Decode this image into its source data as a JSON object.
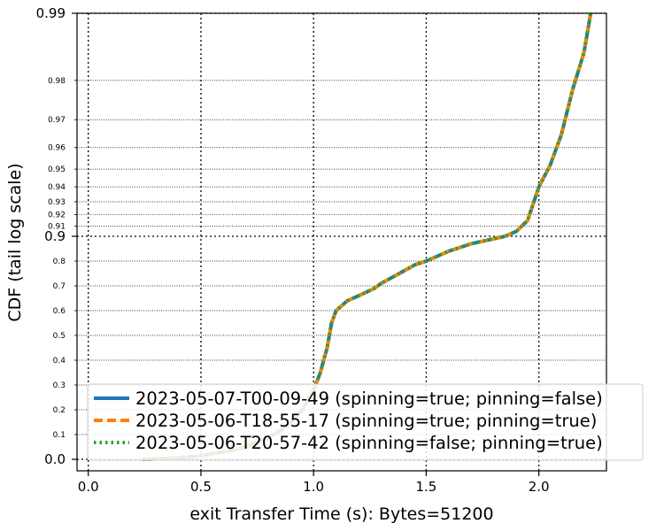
{
  "chart_data": {
    "type": "line",
    "title": "",
    "xlabel": "exit Transfer Time (s): Bytes=51200",
    "ylabel": "CDF (tail log scale)",
    "xlim": [
      -0.05,
      2.3
    ],
    "x_ticks": [
      0.0,
      0.5,
      1.0,
      1.5,
      2.0
    ],
    "x_tick_labels": [
      "0.0",
      "0.5",
      "1.0",
      "1.5",
      "2.0"
    ],
    "y_scale": "tail-log (CDF)",
    "y_ticks_major": [
      0.0,
      0.9,
      0.99
    ],
    "y_ticks_major_labels": [
      "0.0",
      "0.9",
      "0.99"
    ],
    "y_ticks_minor": [
      0.1,
      0.2,
      0.3,
      0.4,
      0.5,
      0.6,
      0.7,
      0.8,
      0.91,
      0.92,
      0.93,
      0.94,
      0.95,
      0.96,
      0.97,
      0.98
    ],
    "y_ticks_minor_labels": [
      "0.1",
      "0.2",
      "0.3",
      "0.4",
      "0.5",
      "0.6",
      "0.7",
      "0.8",
      "0.91",
      "0.92",
      "0.93",
      "0.94",
      "0.95",
      "0.96",
      "0.97",
      "0.98"
    ],
    "grid": true,
    "legend_position": "bottom-right",
    "series": [
      {
        "name": "2023-05-07-T00-09-49 (spinning=true; pinning=false)",
        "color": "#1f77b4",
        "style": "solid",
        "points": [
          [
            0.24,
            0.0
          ],
          [
            0.4,
            0.005
          ],
          [
            0.5,
            0.015
          ],
          [
            0.6,
            0.03
          ],
          [
            0.7,
            0.05
          ],
          [
            0.8,
            0.09
          ],
          [
            0.88,
            0.13
          ],
          [
            0.95,
            0.2
          ],
          [
            1.0,
            0.28
          ],
          [
            1.03,
            0.35
          ],
          [
            1.06,
            0.45
          ],
          [
            1.08,
            0.55
          ],
          [
            1.1,
            0.6
          ],
          [
            1.15,
            0.64
          ],
          [
            1.2,
            0.66
          ],
          [
            1.27,
            0.69
          ],
          [
            1.3,
            0.71
          ],
          [
            1.35,
            0.735
          ],
          [
            1.4,
            0.76
          ],
          [
            1.45,
            0.785
          ],
          [
            1.5,
            0.8
          ],
          [
            1.55,
            0.82
          ],
          [
            1.6,
            0.84
          ],
          [
            1.65,
            0.855
          ],
          [
            1.7,
            0.87
          ],
          [
            1.75,
            0.88
          ],
          [
            1.8,
            0.89
          ],
          [
            1.85,
            0.9
          ],
          [
            1.9,
            0.905
          ],
          [
            1.95,
            0.915
          ],
          [
            2.0,
            0.94
          ],
          [
            2.05,
            0.952
          ],
          [
            2.1,
            0.965
          ],
          [
            2.15,
            0.978
          ],
          [
            2.2,
            0.985
          ],
          [
            2.23,
            0.99
          ]
        ]
      },
      {
        "name": "2023-05-06-T18-55-17 (spinning=true; pinning=true)",
        "color": "#ff7f0e",
        "style": "dashed",
        "points": [
          [
            0.24,
            0.0
          ],
          [
            0.4,
            0.005
          ],
          [
            0.5,
            0.015
          ],
          [
            0.6,
            0.03
          ],
          [
            0.7,
            0.05
          ],
          [
            0.8,
            0.09
          ],
          [
            0.88,
            0.13
          ],
          [
            0.95,
            0.2
          ],
          [
            1.0,
            0.28
          ],
          [
            1.03,
            0.35
          ],
          [
            1.06,
            0.45
          ],
          [
            1.08,
            0.55
          ],
          [
            1.1,
            0.6
          ],
          [
            1.15,
            0.64
          ],
          [
            1.2,
            0.66
          ],
          [
            1.27,
            0.69
          ],
          [
            1.3,
            0.71
          ],
          [
            1.35,
            0.735
          ],
          [
            1.4,
            0.76
          ],
          [
            1.45,
            0.785
          ],
          [
            1.5,
            0.8
          ],
          [
            1.55,
            0.82
          ],
          [
            1.6,
            0.84
          ],
          [
            1.65,
            0.855
          ],
          [
            1.7,
            0.87
          ],
          [
            1.75,
            0.88
          ],
          [
            1.8,
            0.89
          ],
          [
            1.85,
            0.9
          ],
          [
            1.9,
            0.905
          ],
          [
            1.95,
            0.915
          ],
          [
            2.0,
            0.94
          ],
          [
            2.05,
            0.952
          ],
          [
            2.1,
            0.965
          ],
          [
            2.15,
            0.978
          ],
          [
            2.2,
            0.985
          ],
          [
            2.23,
            0.99
          ]
        ]
      },
      {
        "name": "2023-05-06-T20-57-42 (spinning=false; pinning=true)",
        "color": "#2ca02c",
        "style": "dotted",
        "points": [
          [
            0.24,
            0.0
          ],
          [
            0.4,
            0.005
          ],
          [
            0.5,
            0.015
          ],
          [
            0.6,
            0.03
          ],
          [
            0.7,
            0.05
          ],
          [
            0.8,
            0.09
          ],
          [
            0.88,
            0.13
          ],
          [
            0.95,
            0.2
          ],
          [
            1.0,
            0.28
          ],
          [
            1.03,
            0.35
          ],
          [
            1.06,
            0.45
          ],
          [
            1.08,
            0.55
          ],
          [
            1.1,
            0.6
          ],
          [
            1.15,
            0.64
          ],
          [
            1.2,
            0.66
          ],
          [
            1.27,
            0.69
          ],
          [
            1.3,
            0.71
          ],
          [
            1.35,
            0.735
          ],
          [
            1.4,
            0.76
          ],
          [
            1.45,
            0.785
          ],
          [
            1.5,
            0.8
          ],
          [
            1.55,
            0.82
          ],
          [
            1.6,
            0.84
          ],
          [
            1.65,
            0.855
          ],
          [
            1.7,
            0.87
          ],
          [
            1.75,
            0.88
          ],
          [
            1.8,
            0.89
          ],
          [
            1.85,
            0.9
          ],
          [
            1.9,
            0.905
          ],
          [
            1.95,
            0.915
          ],
          [
            2.0,
            0.94
          ],
          [
            2.05,
            0.952
          ],
          [
            2.1,
            0.965
          ],
          [
            2.15,
            0.978
          ],
          [
            2.2,
            0.985
          ],
          [
            2.23,
            0.99
          ]
        ]
      }
    ]
  }
}
